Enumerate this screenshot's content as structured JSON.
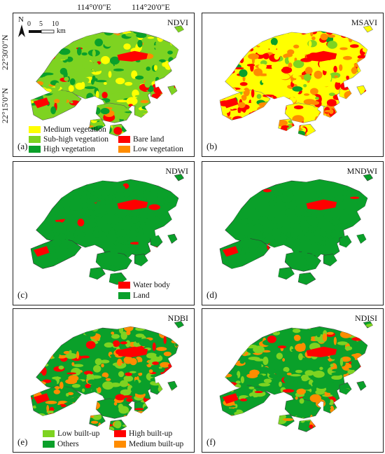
{
  "axes": {
    "top_ticks": [
      "114°0'0\"E",
      "114°20'0\"E"
    ],
    "left_ticks": [
      "22°30'0\"N",
      "22°15'0\"N"
    ]
  },
  "map_furniture": {
    "north_label": "N",
    "scale_labels": [
      "0",
      "5",
      "10",
      "km"
    ]
  },
  "colors": {
    "medium_vegetation": "#ffff00",
    "sub_high_vegetation": "#7ed321",
    "high_vegetation": "#0aa02a",
    "bare_land": "#ff0000",
    "low_vegetation": "#ff8c00",
    "water_body": "#ff0000",
    "land": "#0aa02a",
    "low_built_up": "#7ed321",
    "others": "#0aa02a",
    "high_built_up": "#ff0000",
    "medium_built_up": "#ff8c00"
  },
  "panels": [
    {
      "index": "(a)",
      "title": "NDVI",
      "legend": [
        "Medium vegetation",
        "Sub-high vegetation",
        "High vegetation",
        "Bare land",
        "Low vegetation"
      ]
    },
    {
      "index": "(b)",
      "title": "MSAVI",
      "legend": []
    },
    {
      "index": "(c)",
      "title": "NDWI",
      "legend": [
        "Water body",
        "Land"
      ]
    },
    {
      "index": "(d)",
      "title": "MNDWI",
      "legend": []
    },
    {
      "index": "(e)",
      "title": "NDBI",
      "legend": [
        "Low built-up",
        "Others",
        "High built-up",
        "Medium built-up"
      ]
    },
    {
      "index": "(f)",
      "title": "NDISI",
      "legend": []
    }
  ]
}
